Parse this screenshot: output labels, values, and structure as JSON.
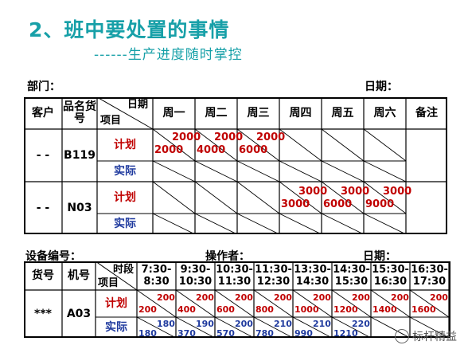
{
  "title": "2、班中要处置的事情",
  "subtitle": "------生产进度随时掌控",
  "table1": {
    "dept_label": "部门：",
    "date_label": "日期：",
    "header": {
      "customer": "客户",
      "item_name": "品名货号",
      "date": "日期",
      "project": "项目",
      "days": [
        "周一",
        "周二",
        "周三",
        "周四",
        "周五",
        "周六"
      ],
      "remark": "备注"
    },
    "rows": [
      {
        "customer": "- -",
        "item": "B119",
        "plan_label": "计划",
        "actual_label": "实际",
        "plan": [
          [
            "2000",
            "2000"
          ],
          [
            "2000",
            "4000"
          ],
          [
            "2000",
            "6000"
          ],
          [
            "",
            ""
          ],
          [
            "",
            ""
          ],
          [
            "",
            ""
          ]
        ]
      },
      {
        "customer": "- -",
        "item": "N03",
        "plan_label": "计划",
        "actual_label": "实际",
        "plan": [
          [
            "",
            ""
          ],
          [
            "",
            ""
          ],
          [
            "",
            ""
          ],
          [
            "3000",
            "3000"
          ],
          [
            "3000",
            "6000"
          ],
          [
            "3000",
            "9000"
          ]
        ]
      }
    ]
  },
  "table2": {
    "equipment_label": "设备编号：",
    "operator_label": "操作者：",
    "date_label": "日期：",
    "header": {
      "item_no": "货号",
      "machine_no": "机号",
      "period": "时段",
      "project": "项目",
      "slots": [
        [
          "7:30-",
          "8:30"
        ],
        [
          "9:30-",
          "10:30"
        ],
        [
          "10:30-",
          "11:30"
        ],
        [
          "11:30-",
          "12:30"
        ],
        [
          "13:30-",
          "14:30"
        ],
        [
          "14:30-",
          "15:30"
        ],
        [
          "15:30-",
          "16:30"
        ],
        [
          "16:30-",
          "17:30"
        ]
      ]
    },
    "row": {
      "item_no": "***",
      "machine_no": "A03",
      "plan_label": "计划",
      "actual_label": "实际",
      "plan": [
        [
          "200",
          "200"
        ],
        [
          "200",
          "400"
        ],
        [
          "200",
          "600"
        ],
        [
          "200",
          "800"
        ],
        [
          "200",
          "1000"
        ],
        [
          "200",
          "1200"
        ],
        [
          "200",
          "1400"
        ],
        [
          "200",
          "1600"
        ]
      ],
      "actual": [
        [
          "180",
          "180"
        ],
        [
          "190",
          "370"
        ],
        [
          "200",
          "570"
        ],
        [
          "210",
          "780"
        ],
        [
          "210",
          "990"
        ],
        [
          "220",
          "1210"
        ],
        [
          "",
          ""
        ],
        [
          "",
          ""
        ]
      ]
    }
  },
  "watermark": "标杆精益",
  "colors": {
    "teal": "#17a0a8",
    "red": "#c00000",
    "blue": "#1f3a9e"
  }
}
